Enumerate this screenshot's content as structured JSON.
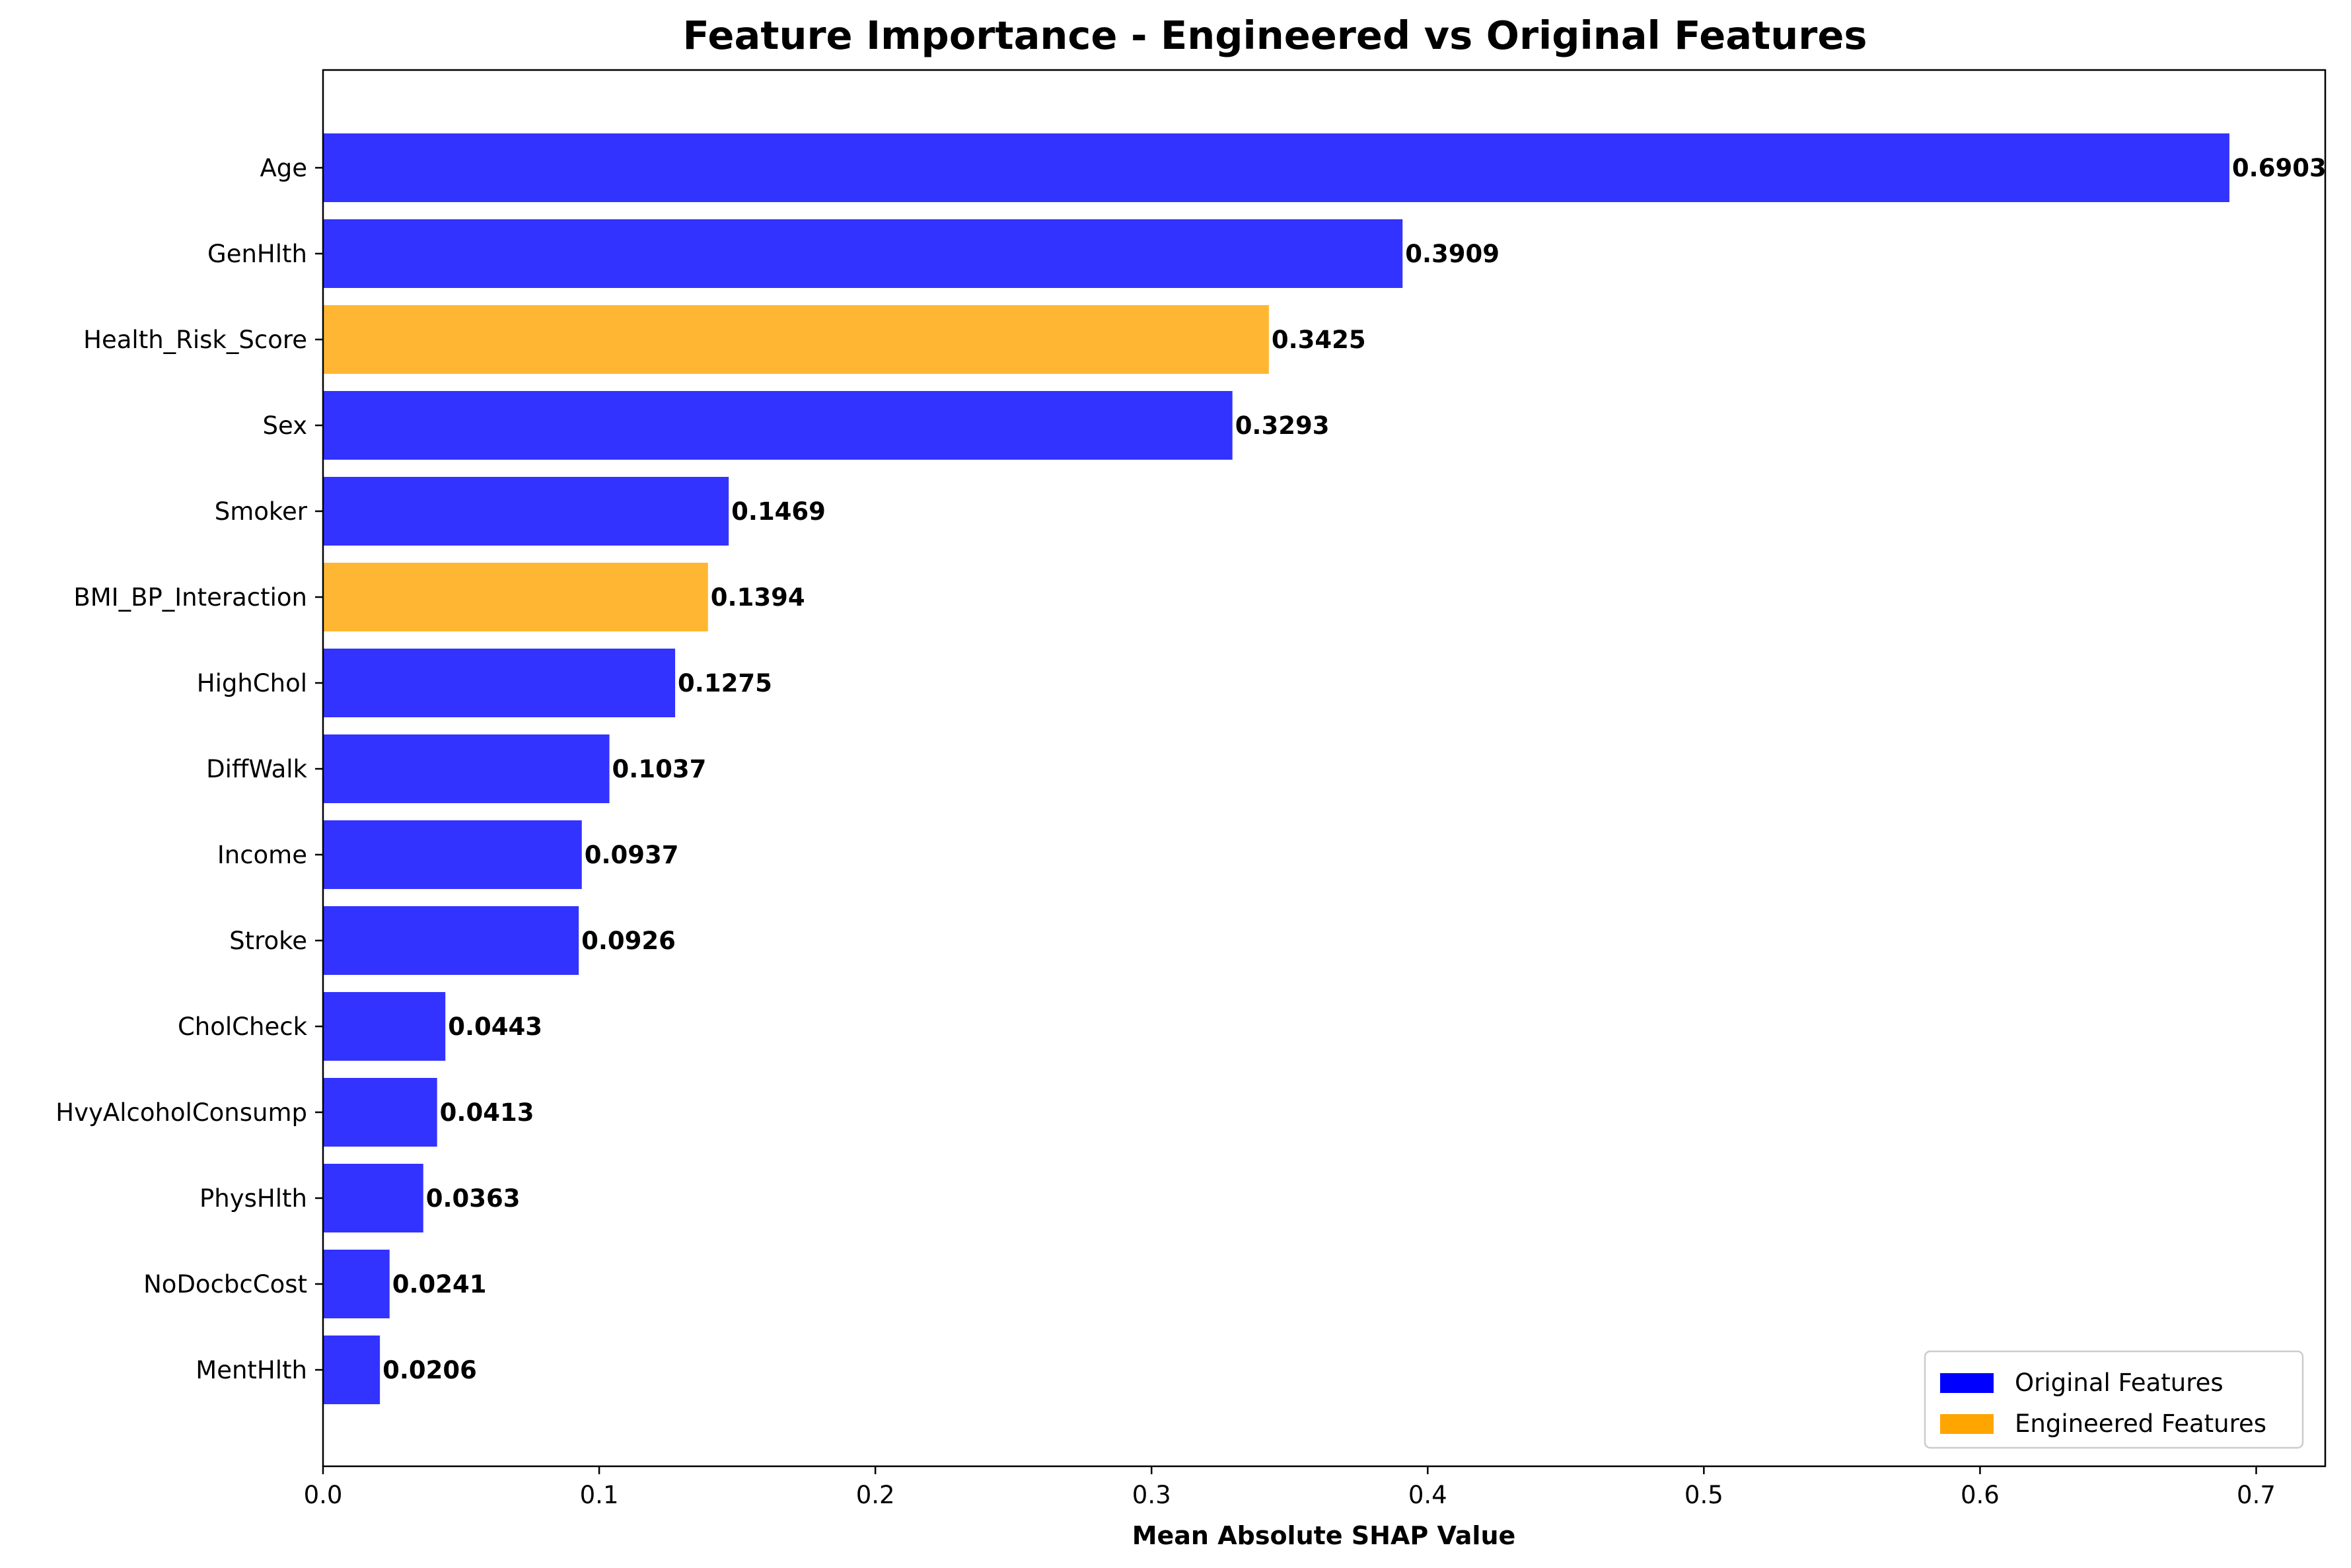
{
  "chart_data": {
    "type": "bar",
    "orientation": "horizontal",
    "title": "Feature Importance - Engineered vs Original Features",
    "xlabel": "Mean Absolute SHAP Value",
    "ylabel": "",
    "xlim": [
      0,
      0.725
    ],
    "xticks": [
      "0.0",
      "0.1",
      "0.2",
      "0.3",
      "0.4",
      "0.5",
      "0.6",
      "0.7"
    ],
    "xtick_values": [
      0,
      0.1,
      0.2,
      0.3,
      0.4,
      0.5,
      0.6,
      0.7
    ],
    "grid": false,
    "legend_position": "bottom-right",
    "colors": {
      "original": "#3333ff",
      "engineered": "#ffb733"
    },
    "legend": [
      {
        "label": "Original Features",
        "color": "#0000ff"
      },
      {
        "label": "Engineered Features",
        "color": "#ffa500"
      }
    ],
    "bars": [
      {
        "category": "Age",
        "value": 0.6903,
        "label": "0.6903",
        "group": "original"
      },
      {
        "category": "GenHlth",
        "value": 0.3909,
        "label": "0.3909",
        "group": "original"
      },
      {
        "category": "Health_Risk_Score",
        "value": 0.3425,
        "label": "0.3425",
        "group": "engineered"
      },
      {
        "category": "Sex",
        "value": 0.3293,
        "label": "0.3293",
        "group": "original"
      },
      {
        "category": "Smoker",
        "value": 0.1469,
        "label": "0.1469",
        "group": "original"
      },
      {
        "category": "BMI_BP_Interaction",
        "value": 0.1394,
        "label": "0.1394",
        "group": "engineered"
      },
      {
        "category": "HighChol",
        "value": 0.1275,
        "label": "0.1275",
        "group": "original"
      },
      {
        "category": "DiffWalk",
        "value": 0.1037,
        "label": "0.1037",
        "group": "original"
      },
      {
        "category": "Income",
        "value": 0.0937,
        "label": "0.0937",
        "group": "original"
      },
      {
        "category": "Stroke",
        "value": 0.0926,
        "label": "0.0926",
        "group": "original"
      },
      {
        "category": "CholCheck",
        "value": 0.0443,
        "label": "0.0443",
        "group": "original"
      },
      {
        "category": "HvyAlcoholConsump",
        "value": 0.0413,
        "label": "0.0413",
        "group": "original"
      },
      {
        "category": "PhysHlth",
        "value": 0.0363,
        "label": "0.0363",
        "group": "original"
      },
      {
        "category": "NoDocbcCost",
        "value": 0.0241,
        "label": "0.0241",
        "group": "original"
      },
      {
        "category": "MentHlth",
        "value": 0.0206,
        "label": "0.0206",
        "group": "original"
      }
    ]
  }
}
